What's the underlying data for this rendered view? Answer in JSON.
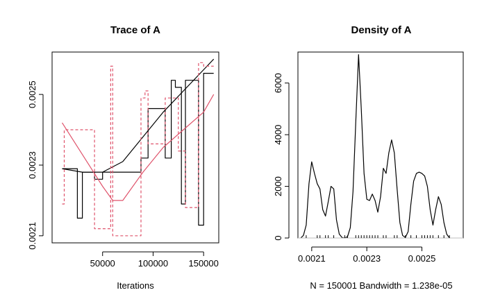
{
  "chart_data": [
    {
      "type": "line",
      "title": "Trace of A",
      "xlabel": "Iterations",
      "ylabel": "",
      "xlim": [
        0,
        165000
      ],
      "ylim": [
        0.00208,
        0.00262
      ],
      "x_ticks": [
        50000,
        100000,
        150000
      ],
      "y_ticks": [
        0.0021,
        0.0023,
        0.0025
      ],
      "x_tick_labels": [
        "50000",
        "100000",
        "150000"
      ],
      "y_tick_labels": [
        "0.0021",
        "0.0023",
        "0.0025"
      ],
      "grid": false,
      "series": [
        {
          "color": "#000000",
          "style": "solid",
          "x": [
            10000,
            25000,
            25000,
            30000,
            30000,
            42000,
            42000,
            50000,
            50000,
            58000,
            58000,
            88000,
            88000,
            95000,
            95000,
            103000,
            103000,
            112000,
            112000,
            118000,
            118000,
            122000,
            122000,
            128000,
            128000,
            132000,
            132000,
            145000,
            145000,
            150000,
            150000,
            160000
          ],
          "values": [
            0.00229,
            0.00229,
            0.00215,
            0.00215,
            0.00228,
            0.00228,
            0.00226,
            0.00226,
            0.00228,
            0.00228,
            0.00228,
            0.00228,
            0.00232,
            0.00232,
            0.00246,
            0.00246,
            0.00246,
            0.00246,
            0.00232,
            0.00232,
            0.00254,
            0.00254,
            0.00252,
            0.00252,
            0.00219,
            0.00219,
            0.00254,
            0.00254,
            0.00213,
            0.00213,
            0.00256,
            0.00256
          ]
        },
        {
          "color": "#000000",
          "style": "solid",
          "x": [
            10000,
            30000,
            50000,
            70000,
            90000,
            110000,
            130000,
            150000,
            160000
          ],
          "values": [
            0.00229,
            0.00228,
            0.00228,
            0.00231,
            0.00238,
            0.00245,
            0.00251,
            0.00257,
            0.0026
          ]
        },
        {
          "color": "#DF536B",
          "style": "dashed",
          "x": [
            10000,
            12000,
            12000,
            42000,
            42000,
            58000,
            58000,
            60000,
            60000,
            88000,
            88000,
            92000,
            92000,
            95000,
            95000,
            112000,
            112000,
            125000,
            125000,
            132000,
            132000,
            145000,
            145000,
            150000,
            150000,
            160000
          ],
          "values": [
            0.00219,
            0.00219,
            0.0024,
            0.0024,
            0.00212,
            0.00212,
            0.00258,
            0.00258,
            0.0021,
            0.0021,
            0.00249,
            0.00249,
            0.00251,
            0.00251,
            0.00236,
            0.00236,
            0.00249,
            0.00249,
            0.00234,
            0.00234,
            0.00218,
            0.00218,
            0.00259,
            0.00259,
            0.00258,
            0.00258
          ]
        },
        {
          "color": "#DF536B",
          "style": "solid",
          "x": [
            10000,
            30000,
            50000,
            60000,
            70000,
            90000,
            110000,
            130000,
            150000,
            160000
          ],
          "values": [
            0.00242,
            0.00233,
            0.00224,
            0.0022,
            0.0022,
            0.00228,
            0.00235,
            0.0024,
            0.00245,
            0.0025
          ]
        }
      ]
    },
    {
      "type": "line",
      "title": "Density of A",
      "xlabel": "N = 150001   Bandwidth = 1.238e-05",
      "ylabel": "",
      "xlim": [
        0.00205,
        0.00265
      ],
      "ylim": [
        0,
        7200
      ],
      "x_ticks": [
        0.0021,
        0.0023,
        0.0025
      ],
      "y_ticks": [
        0,
        2000,
        4000,
        6000
      ],
      "x_tick_labels": [
        "0.0021",
        "0.0023",
        "0.0025"
      ],
      "y_tick_labels": [
        "0",
        "2000",
        "4000",
        "6000"
      ],
      "grid": false,
      "series": [
        {
          "color": "#000000",
          "style": "solid",
          "x": [
            0.00206,
            0.00207,
            0.00208,
            0.00209,
            0.0021,
            0.00211,
            0.00212,
            0.00213,
            0.00214,
            0.00215,
            0.00216,
            0.00217,
            0.00218,
            0.00219,
            0.0022,
            0.00221,
            0.00222,
            0.00223,
            0.00224,
            0.00225,
            0.00226,
            0.00227,
            0.00228,
            0.00229,
            0.0023,
            0.00231,
            0.00232,
            0.00233,
            0.00234,
            0.00235,
            0.00236,
            0.00237,
            0.00238,
            0.00239,
            0.0024,
            0.00241,
            0.00242,
            0.00243,
            0.00244,
            0.00245,
            0.00246,
            0.00247,
            0.00248,
            0.00249,
            0.0025,
            0.00251,
            0.00252,
            0.00253,
            0.00254,
            0.00255,
            0.00256,
            0.00257,
            0.00258,
            0.00259,
            0.0026
          ],
          "values": [
            0,
            100,
            500,
            2100,
            2950,
            2500,
            2100,
            1900,
            1100,
            850,
            1400,
            2000,
            1900,
            700,
            150,
            20,
            0,
            50,
            400,
            1800,
            4500,
            7100,
            5000,
            2500,
            1500,
            1450,
            1700,
            1450,
            1000,
            1600,
            2700,
            2500,
            3300,
            3800,
            3300,
            1900,
            600,
            100,
            20,
            250,
            1300,
            2200,
            2500,
            2550,
            2500,
            2400,
            2000,
            1100,
            500,
            1100,
            1600,
            1300,
            600,
            150,
            0
          ]
        }
      ],
      "rug": [
        0.00208,
        0.00212,
        0.00213,
        0.00215,
        0.00216,
        0.00218,
        0.00222,
        0.00223,
        0.00226,
        0.00227,
        0.00228,
        0.00229,
        0.0023,
        0.00231,
        0.00232,
        0.00233,
        0.00234,
        0.00236,
        0.00237,
        0.0024,
        0.00241,
        0.00244,
        0.00246,
        0.00248,
        0.0025,
        0.00251,
        0.00252,
        0.00253,
        0.00254,
        0.00256,
        0.00258,
        0.0026
      ]
    }
  ]
}
